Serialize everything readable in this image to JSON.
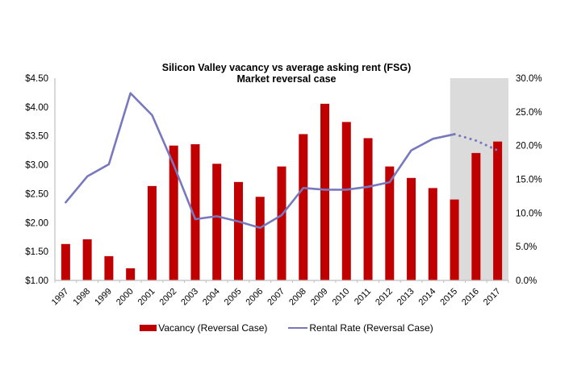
{
  "title": {
    "line1": "Silicon Valley vacancy vs average asking rent (FSG)",
    "line2": "Market reversal case"
  },
  "legend": {
    "items": [
      {
        "label": "Vacancy (Reversal Case)",
        "color": "#C00000",
        "swatch": "bar"
      },
      {
        "label": "Rental Rate (Reversal Case)",
        "color": "#7878BE",
        "swatch": "line"
      }
    ]
  },
  "colors": {
    "bar_red": "#C00000",
    "line_purple": "#7878BE",
    "forecast_gray": "#DBDBDB",
    "axis_gray": "#BFBFBF",
    "text": "#000000"
  },
  "chart_data": {
    "type": "bar",
    "subtype": "combo-bar-line",
    "title": "Silicon Valley vacancy vs average asking rent (FSG) — Market reversal case",
    "categories": [
      "1997",
      "1998",
      "1999",
      "2000",
      "2001",
      "2002",
      "2003",
      "2004",
      "2005",
      "2006",
      "2007",
      "2008",
      "2009",
      "2010",
      "2011",
      "2012",
      "2013",
      "2014",
      "2015",
      "2016",
      "2017"
    ],
    "series": [
      {
        "name": "Vacancy (Reversal Case)",
        "type": "bar",
        "axis": "right",
        "unit": "%",
        "color": "#C00000",
        "values": [
          5.4,
          6.1,
          3.6,
          1.8,
          14.0,
          20.0,
          20.2,
          17.3,
          14.6,
          12.4,
          16.9,
          21.7,
          26.2,
          23.5,
          21.1,
          16.9,
          15.2,
          13.7,
          12.0,
          18.9,
          20.6
        ]
      },
      {
        "name": "Rental Rate (Reversal Case)",
        "type": "line",
        "axis": "left",
        "unit": "$",
        "color": "#7878BE",
        "values": [
          2.35,
          2.8,
          3.01,
          4.24,
          3.86,
          3.0,
          2.06,
          2.11,
          2.02,
          1.91,
          2.13,
          2.6,
          2.57,
          2.57,
          2.62,
          2.7,
          3.25,
          3.45,
          3.53,
          3.42,
          3.25
        ],
        "dotted_from_index": 18
      }
    ],
    "left_axis": {
      "min": 1.0,
      "max": 4.5,
      "step": 0.5,
      "tick_labels": [
        "$1.00",
        "$1.50",
        "$2.00",
        "$2.50",
        "$3.00",
        "$3.50",
        "$4.00",
        "$4.50"
      ]
    },
    "right_axis": {
      "min": 0,
      "max": 30,
      "step": 5,
      "tick_labels": [
        "0.0%",
        "5.0%",
        "10.0%",
        "15.0%",
        "20.0%",
        "25.0%",
        "30.0%"
      ]
    },
    "forecast_region": {
      "start_category": "2015",
      "end_category": "2017",
      "color": "#DBDBDB"
    },
    "legend_position": "bottom",
    "grid": false
  }
}
